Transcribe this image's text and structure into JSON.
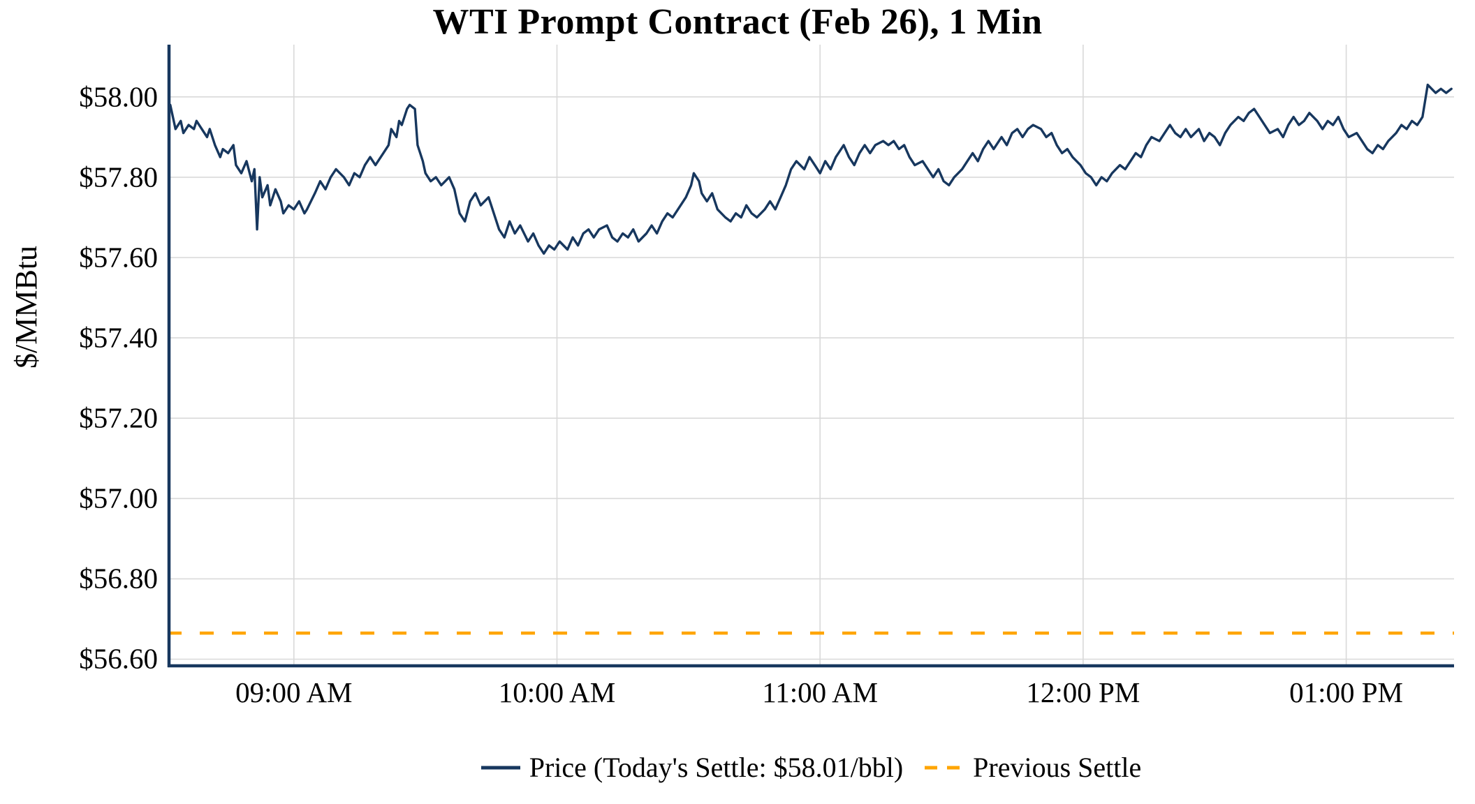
{
  "chart_data": {
    "type": "line",
    "title": "WTI Prompt Contract (Feb 26), 1 Min",
    "xlabel": "",
    "ylabel": "$/MMBtu",
    "xlim": [
      8.52,
      13.41
    ],
    "ylim": [
      56.58,
      58.13
    ],
    "grid": true,
    "legend_position": "bottom",
    "colors": {
      "price_line": "#17375e",
      "previous_settle_line": "#ffa500",
      "grid": "#d9d9d9",
      "axis": "#17375e",
      "background": "#ffffff",
      "text": "#000000"
    },
    "x_ticks": [
      {
        "value": 9,
        "label": "09:00 AM"
      },
      {
        "value": 10,
        "label": "10:00 AM"
      },
      {
        "value": 11,
        "label": "11:00 AM"
      },
      {
        "value": 12,
        "label": "12:00 PM"
      },
      {
        "value": 13,
        "label": "01:00 PM"
      }
    ],
    "y_ticks": [
      {
        "value": 56.6,
        "label": "$56.60"
      },
      {
        "value": 56.8,
        "label": "$56.80"
      },
      {
        "value": 57.0,
        "label": "$57.00"
      },
      {
        "value": 57.2,
        "label": "$57.20"
      },
      {
        "value": 57.4,
        "label": "$57.40"
      },
      {
        "value": 57.6,
        "label": "$57.60"
      },
      {
        "value": 57.8,
        "label": "$57.80"
      },
      {
        "value": 58.0,
        "label": "$58.00"
      }
    ],
    "series": [
      {
        "name": "Price (Today's Settle: $58.01/bbl)",
        "color": "#17375e",
        "style": "solid",
        "todays_settle": 58.01,
        "points": [
          [
            8.53,
            57.98
          ],
          [
            8.55,
            57.92
          ],
          [
            8.57,
            57.94
          ],
          [
            8.58,
            57.91
          ],
          [
            8.6,
            57.93
          ],
          [
            8.62,
            57.92
          ],
          [
            8.63,
            57.94
          ],
          [
            8.65,
            57.92
          ],
          [
            8.67,
            57.9
          ],
          [
            8.68,
            57.92
          ],
          [
            8.7,
            57.88
          ],
          [
            8.72,
            57.85
          ],
          [
            8.73,
            57.87
          ],
          [
            8.75,
            57.86
          ],
          [
            8.77,
            57.88
          ],
          [
            8.78,
            57.83
          ],
          [
            8.8,
            57.81
          ],
          [
            8.82,
            57.84
          ],
          [
            8.84,
            57.79
          ],
          [
            8.85,
            57.82
          ],
          [
            8.86,
            57.67
          ],
          [
            8.87,
            57.8
          ],
          [
            8.88,
            57.75
          ],
          [
            8.9,
            57.78
          ],
          [
            8.91,
            57.73
          ],
          [
            8.93,
            57.77
          ],
          [
            8.95,
            57.74
          ],
          [
            8.96,
            57.71
          ],
          [
            8.98,
            57.73
          ],
          [
            9.0,
            57.72
          ],
          [
            9.02,
            57.74
          ],
          [
            9.04,
            57.71
          ],
          [
            9.05,
            57.72
          ],
          [
            9.08,
            57.76
          ],
          [
            9.1,
            57.79
          ],
          [
            9.12,
            57.77
          ],
          [
            9.14,
            57.8
          ],
          [
            9.16,
            57.82
          ],
          [
            9.19,
            57.8
          ],
          [
            9.21,
            57.78
          ],
          [
            9.23,
            57.81
          ],
          [
            9.25,
            57.8
          ],
          [
            9.27,
            57.83
          ],
          [
            9.29,
            57.85
          ],
          [
            9.31,
            57.83
          ],
          [
            9.34,
            57.86
          ],
          [
            9.36,
            57.88
          ],
          [
            9.37,
            57.92
          ],
          [
            9.39,
            57.9
          ],
          [
            9.4,
            57.94
          ],
          [
            9.41,
            57.93
          ],
          [
            9.43,
            57.97
          ],
          [
            9.44,
            57.98
          ],
          [
            9.46,
            57.97
          ],
          [
            9.47,
            57.88
          ],
          [
            9.49,
            57.84
          ],
          [
            9.5,
            57.81
          ],
          [
            9.52,
            57.79
          ],
          [
            9.54,
            57.8
          ],
          [
            9.56,
            57.78
          ],
          [
            9.59,
            57.8
          ],
          [
            9.61,
            57.77
          ],
          [
            9.63,
            57.71
          ],
          [
            9.65,
            57.69
          ],
          [
            9.67,
            57.74
          ],
          [
            9.69,
            57.76
          ],
          [
            9.71,
            57.73
          ],
          [
            9.74,
            57.75
          ],
          [
            9.76,
            57.71
          ],
          [
            9.78,
            57.67
          ],
          [
            9.8,
            57.65
          ],
          [
            9.82,
            57.69
          ],
          [
            9.84,
            57.66
          ],
          [
            9.86,
            57.68
          ],
          [
            9.89,
            57.64
          ],
          [
            9.91,
            57.66
          ],
          [
            9.93,
            57.63
          ],
          [
            9.95,
            57.61
          ],
          [
            9.97,
            57.63
          ],
          [
            9.99,
            57.62
          ],
          [
            10.01,
            57.64
          ],
          [
            10.04,
            57.62
          ],
          [
            10.06,
            57.65
          ],
          [
            10.08,
            57.63
          ],
          [
            10.1,
            57.66
          ],
          [
            10.12,
            57.67
          ],
          [
            10.14,
            57.65
          ],
          [
            10.16,
            57.67
          ],
          [
            10.19,
            57.68
          ],
          [
            10.21,
            57.65
          ],
          [
            10.23,
            57.64
          ],
          [
            10.25,
            57.66
          ],
          [
            10.27,
            57.65
          ],
          [
            10.29,
            57.67
          ],
          [
            10.31,
            57.64
          ],
          [
            10.34,
            57.66
          ],
          [
            10.36,
            57.68
          ],
          [
            10.38,
            57.66
          ],
          [
            10.4,
            57.69
          ],
          [
            10.42,
            57.71
          ],
          [
            10.44,
            57.7
          ],
          [
            10.46,
            57.72
          ],
          [
            10.49,
            57.75
          ],
          [
            10.51,
            57.78
          ],
          [
            10.52,
            57.81
          ],
          [
            10.54,
            57.79
          ],
          [
            10.55,
            57.76
          ],
          [
            10.57,
            57.74
          ],
          [
            10.59,
            57.76
          ],
          [
            10.61,
            57.72
          ],
          [
            10.64,
            57.7
          ],
          [
            10.66,
            57.69
          ],
          [
            10.68,
            57.71
          ],
          [
            10.7,
            57.7
          ],
          [
            10.72,
            57.73
          ],
          [
            10.74,
            57.71
          ],
          [
            10.76,
            57.7
          ],
          [
            10.79,
            57.72
          ],
          [
            10.81,
            57.74
          ],
          [
            10.83,
            57.72
          ],
          [
            10.85,
            57.75
          ],
          [
            10.87,
            57.78
          ],
          [
            10.89,
            57.82
          ],
          [
            10.91,
            57.84
          ],
          [
            10.94,
            57.82
          ],
          [
            10.96,
            57.85
          ],
          [
            10.98,
            57.83
          ],
          [
            11.0,
            57.81
          ],
          [
            11.02,
            57.84
          ],
          [
            11.04,
            57.82
          ],
          [
            11.06,
            57.85
          ],
          [
            11.09,
            57.88
          ],
          [
            11.11,
            57.85
          ],
          [
            11.13,
            57.83
          ],
          [
            11.15,
            57.86
          ],
          [
            11.17,
            57.88
          ],
          [
            11.19,
            57.86
          ],
          [
            11.21,
            57.88
          ],
          [
            11.24,
            57.89
          ],
          [
            11.26,
            57.88
          ],
          [
            11.28,
            57.89
          ],
          [
            11.3,
            57.87
          ],
          [
            11.32,
            57.88
          ],
          [
            11.34,
            57.85
          ],
          [
            11.36,
            57.83
          ],
          [
            11.39,
            57.84
          ],
          [
            11.41,
            57.82
          ],
          [
            11.43,
            57.8
          ],
          [
            11.45,
            57.82
          ],
          [
            11.47,
            57.79
          ],
          [
            11.49,
            57.78
          ],
          [
            11.51,
            57.8
          ],
          [
            11.54,
            57.82
          ],
          [
            11.56,
            57.84
          ],
          [
            11.58,
            57.86
          ],
          [
            11.6,
            57.84
          ],
          [
            11.62,
            57.87
          ],
          [
            11.64,
            57.89
          ],
          [
            11.66,
            57.87
          ],
          [
            11.69,
            57.9
          ],
          [
            11.71,
            57.88
          ],
          [
            11.73,
            57.91
          ],
          [
            11.75,
            57.92
          ],
          [
            11.77,
            57.9
          ],
          [
            11.79,
            57.92
          ],
          [
            11.81,
            57.93
          ],
          [
            11.84,
            57.92
          ],
          [
            11.86,
            57.9
          ],
          [
            11.88,
            57.91
          ],
          [
            11.9,
            57.88
          ],
          [
            11.92,
            57.86
          ],
          [
            11.94,
            57.87
          ],
          [
            11.96,
            57.85
          ],
          [
            11.99,
            57.83
          ],
          [
            12.01,
            57.81
          ],
          [
            12.03,
            57.8
          ],
          [
            12.05,
            57.78
          ],
          [
            12.07,
            57.8
          ],
          [
            12.09,
            57.79
          ],
          [
            12.11,
            57.81
          ],
          [
            12.14,
            57.83
          ],
          [
            12.16,
            57.82
          ],
          [
            12.18,
            57.84
          ],
          [
            12.2,
            57.86
          ],
          [
            12.22,
            57.85
          ],
          [
            12.24,
            57.88
          ],
          [
            12.26,
            57.9
          ],
          [
            12.29,
            57.89
          ],
          [
            12.31,
            57.91
          ],
          [
            12.33,
            57.93
          ],
          [
            12.35,
            57.91
          ],
          [
            12.37,
            57.9
          ],
          [
            12.39,
            57.92
          ],
          [
            12.41,
            57.9
          ],
          [
            12.44,
            57.92
          ],
          [
            12.46,
            57.89
          ],
          [
            12.48,
            57.91
          ],
          [
            12.5,
            57.9
          ],
          [
            12.52,
            57.88
          ],
          [
            12.54,
            57.91
          ],
          [
            12.56,
            57.93
          ],
          [
            12.59,
            57.95
          ],
          [
            12.61,
            57.94
          ],
          [
            12.63,
            57.96
          ],
          [
            12.65,
            57.97
          ],
          [
            12.67,
            57.95
          ],
          [
            12.69,
            57.93
          ],
          [
            12.71,
            57.91
          ],
          [
            12.74,
            57.92
          ],
          [
            12.76,
            57.9
          ],
          [
            12.78,
            57.93
          ],
          [
            12.8,
            57.95
          ],
          [
            12.82,
            57.93
          ],
          [
            12.84,
            57.94
          ],
          [
            12.86,
            57.96
          ],
          [
            12.89,
            57.94
          ],
          [
            12.91,
            57.92
          ],
          [
            12.93,
            57.94
          ],
          [
            12.95,
            57.93
          ],
          [
            12.97,
            57.95
          ],
          [
            12.99,
            57.92
          ],
          [
            13.01,
            57.9
          ],
          [
            13.04,
            57.91
          ],
          [
            13.06,
            57.89
          ],
          [
            13.08,
            57.87
          ],
          [
            13.1,
            57.86
          ],
          [
            13.12,
            57.88
          ],
          [
            13.14,
            57.87
          ],
          [
            13.16,
            57.89
          ],
          [
            13.19,
            57.91
          ],
          [
            13.21,
            57.93
          ],
          [
            13.23,
            57.92
          ],
          [
            13.25,
            57.94
          ],
          [
            13.27,
            57.93
          ],
          [
            13.29,
            57.95
          ],
          [
            13.31,
            58.03
          ],
          [
            13.34,
            58.01
          ],
          [
            13.36,
            58.02
          ],
          [
            13.38,
            58.01
          ],
          [
            13.4,
            58.02
          ]
        ]
      },
      {
        "name": "Previous Settle",
        "color": "#ffa500",
        "style": "dashed",
        "value": 56.665
      }
    ]
  }
}
